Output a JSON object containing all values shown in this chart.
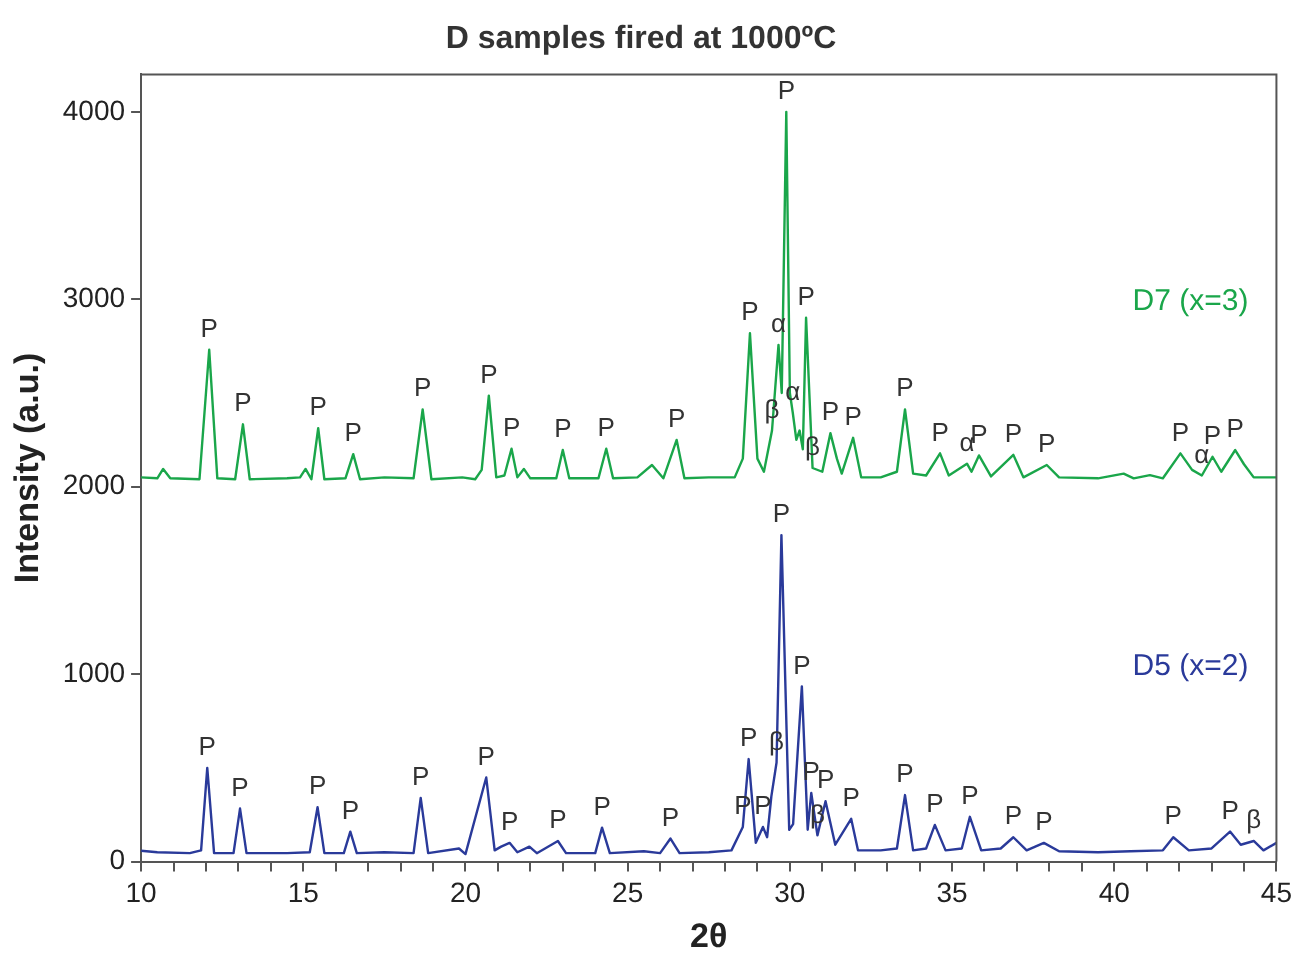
{
  "chart_data": {
    "type": "line",
    "title": "D samples fired at 1000ºC",
    "xlabel": "2θ",
    "ylabel": "Intensity (a.u.)",
    "xlim": [
      10,
      45
    ],
    "ylim": [
      0,
      4200
    ],
    "xticks": [
      10,
      {
        "value": 11,
        "label": null
      },
      {
        "value": 12,
        "label": null
      },
      {
        "value": 13,
        "label": null
      },
      {
        "value": 14,
        "label": null
      },
      15,
      {
        "value": 16,
        "label": null
      },
      {
        "value": 17,
        "label": null
      },
      {
        "value": 18,
        "label": null
      },
      {
        "value": 19,
        "label": null
      },
      20,
      {
        "value": 21,
        "label": null
      },
      {
        "value": 22,
        "label": null
      },
      {
        "value": 23,
        "label": null
      },
      {
        "value": 24,
        "label": null
      },
      25,
      {
        "value": 26,
        "label": null
      },
      {
        "value": 27,
        "label": null
      },
      {
        "value": 28,
        "label": null
      },
      {
        "value": 29,
        "label": null
      },
      30,
      {
        "value": 31,
        "label": null
      },
      {
        "value": 32,
        "label": null
      },
      {
        "value": 33,
        "label": null
      },
      {
        "value": 34,
        "label": null
      },
      35,
      {
        "value": 36,
        "label": null
      },
      {
        "value": 37,
        "label": null
      },
      {
        "value": 38,
        "label": null
      },
      {
        "value": 39,
        "label": null
      },
      40,
      {
        "value": 41,
        "label": null
      },
      {
        "value": 42,
        "label": null
      },
      {
        "value": 43,
        "label": null
      },
      {
        "value": 44,
        "label": null
      },
      45
    ],
    "yticks": [
      0,
      1000,
      2000,
      3000,
      4000
    ],
    "grid": false,
    "legend": false,
    "marker": "none",
    "line_style": "solid",
    "series": [
      {
        "name": "D7 (x=3)",
        "color": "#1aa64a",
        "x": [
          10.0,
          10.5,
          10.68,
          10.9,
          11.8,
          12.1,
          12.35,
          12.9,
          13.14,
          13.35,
          14.5,
          14.9,
          15.07,
          15.25,
          15.46,
          15.65,
          16.3,
          16.54,
          16.75,
          17.5,
          18.4,
          18.68,
          18.95,
          19.9,
          20.3,
          20.5,
          20.72,
          20.95,
          21.2,
          21.42,
          21.6,
          21.8,
          22.0,
          22.8,
          23.0,
          23.2,
          24.1,
          24.34,
          24.55,
          25.3,
          25.75,
          26.1,
          26.51,
          26.75,
          27.5,
          28.3,
          28.55,
          28.77,
          29.0,
          29.2,
          29.45,
          29.65,
          29.75,
          29.89,
          30.0,
          30.09,
          30.2,
          30.3,
          30.4,
          30.5,
          30.7,
          31.0,
          31.25,
          31.45,
          31.6,
          31.95,
          32.2,
          32.8,
          33.3,
          33.55,
          33.8,
          34.2,
          34.63,
          34.9,
          35.46,
          35.6,
          35.83,
          36.2,
          36.89,
          37.2,
          37.92,
          38.3,
          39.5,
          40.29,
          40.6,
          41.1,
          41.5,
          42.04,
          42.4,
          42.7,
          43.03,
          43.3,
          43.73,
          44.0,
          44.3,
          45.0
        ],
        "values": [
          2050,
          2045,
          2095,
          2045,
          2040,
          2731,
          2045,
          2040,
          2333,
          2040,
          2045,
          2050,
          2095,
          2040,
          2312,
          2040,
          2045,
          2174,
          2040,
          2050,
          2045,
          2413,
          2040,
          2050,
          2040,
          2090,
          2486,
          2050,
          2060,
          2203,
          2050,
          2095,
          2045,
          2045,
          2196,
          2045,
          2045,
          2203,
          2045,
          2050,
          2116,
          2045,
          2250,
          2045,
          2050,
          2050,
          2150,
          2819,
          2150,
          2080,
          2300,
          2757,
          2500,
          4000,
          2500,
          2395,
          2250,
          2300,
          2200,
          2902,
          2100,
          2080,
          2286,
          2150,
          2070,
          2261,
          2050,
          2050,
          2080,
          2413,
          2070,
          2060,
          2178,
          2060,
          2123,
          2080,
          2167,
          2055,
          2170,
          2050,
          2116,
          2050,
          2045,
          2070,
          2045,
          2062,
          2045,
          2178,
          2090,
          2060,
          2160,
          2080,
          2196,
          2120,
          2050,
          2050
        ]
      },
      {
        "name": "D5 (x=2)",
        "color": "#2a3a9a",
        "x": [
          10.0,
          10.5,
          11.5,
          11.85,
          12.04,
          12.25,
          12.85,
          13.05,
          13.25,
          14.5,
          15.2,
          15.44,
          15.65,
          16.25,
          16.45,
          16.65,
          17.5,
          18.4,
          18.62,
          18.85,
          19.8,
          20.0,
          20.64,
          20.9,
          21.1,
          21.36,
          21.6,
          21.97,
          22.2,
          22.85,
          23.1,
          24.0,
          24.21,
          24.45,
          25.5,
          26.0,
          26.32,
          26.6,
          27.5,
          28.2,
          28.55,
          28.73,
          28.95,
          29.17,
          29.3,
          29.43,
          29.59,
          29.74,
          29.98,
          30.1,
          30.37,
          30.55,
          30.66,
          30.85,
          31.1,
          31.4,
          31.89,
          32.1,
          32.8,
          33.3,
          33.55,
          33.8,
          34.2,
          34.47,
          34.8,
          35.3,
          35.55,
          35.9,
          36.5,
          36.89,
          37.3,
          37.83,
          38.3,
          39.5,
          40.5,
          41.5,
          41.82,
          42.3,
          43.0,
          43.57,
          43.9,
          44.3,
          44.6,
          45.0
        ],
        "values": [
          58,
          50,
          45,
          60,
          500,
          45,
          45,
          283,
          45,
          45,
          50,
          290,
          45,
          45,
          160,
          45,
          50,
          45,
          340,
          45,
          70,
          40,
          449,
          60,
          80,
          100,
          50,
          80,
          45,
          110,
          45,
          45,
          181,
          45,
          55,
          45,
          123,
          45,
          50,
          60,
          185,
          547,
          100,
          185,
          130,
          348,
          529,
          1742,
          170,
          200,
          935,
          170,
          366,
          140,
          322,
          90,
          228,
          60,
          60,
          70,
          355,
          60,
          70,
          196,
          60,
          70,
          239,
          60,
          70,
          130,
          60,
          100,
          55,
          50,
          55,
          60,
          130,
          60,
          70,
          160,
          90,
          110,
          60,
          100
        ]
      }
    ],
    "annotations": [
      {
        "text": "P",
        "x": 12.1,
        "y": 2731
      },
      {
        "text": "P",
        "x": 13.14,
        "y": 2333
      },
      {
        "text": "P",
        "x": 15.46,
        "y": 2312
      },
      {
        "text": "P",
        "x": 16.54,
        "y": 2174
      },
      {
        "text": "P",
        "x": 18.68,
        "y": 2413
      },
      {
        "text": "P",
        "x": 20.72,
        "y": 2486
      },
      {
        "text": "P",
        "x": 21.42,
        "y": 2203
      },
      {
        "text": "P",
        "x": 23.0,
        "y": 2196
      },
      {
        "text": "P",
        "x": 24.34,
        "y": 2203
      },
      {
        "text": "P",
        "x": 26.51,
        "y": 2250
      },
      {
        "text": "P",
        "x": 28.77,
        "y": 2819
      },
      {
        "text": "α",
        "x": 29.65,
        "y": 2757
      },
      {
        "text": "β",
        "x": 29.45,
        "y": 2300
      },
      {
        "text": "P",
        "x": 29.89,
        "y": 4000
      },
      {
        "text": "α",
        "x": 30.09,
        "y": 2395
      },
      {
        "text": "P",
        "x": 30.5,
        "y": 2902
      },
      {
        "text": "β",
        "x": 30.7,
        "y": 2100
      },
      {
        "text": "P",
        "x": 31.25,
        "y": 2286
      },
      {
        "text": "P",
        "x": 31.95,
        "y": 2261
      },
      {
        "text": "P",
        "x": 33.55,
        "y": 2413
      },
      {
        "text": "P",
        "x": 34.63,
        "y": 2178
      },
      {
        "text": "α",
        "x": 35.46,
        "y": 2123
      },
      {
        "text": "P",
        "x": 35.83,
        "y": 2167
      },
      {
        "text": "P",
        "x": 36.89,
        "y": 2170
      },
      {
        "text": "P",
        "x": 37.92,
        "y": 2116
      },
      {
        "text": "P",
        "x": 42.04,
        "y": 2178
      },
      {
        "text": "α",
        "x": 42.7,
        "y": 2060
      },
      {
        "text": "P",
        "x": 43.03,
        "y": 2160
      },
      {
        "text": "P",
        "x": 43.73,
        "y": 2196
      },
      {
        "text": "P",
        "x": 12.04,
        "y": 500
      },
      {
        "text": "P",
        "x": 13.05,
        "y": 283
      },
      {
        "text": "P",
        "x": 15.44,
        "y": 290
      },
      {
        "text": "P",
        "x": 16.45,
        "y": 160
      },
      {
        "text": "P",
        "x": 18.62,
        "y": 340
      },
      {
        "text": "P",
        "x": 20.64,
        "y": 449
      },
      {
        "text": "P",
        "x": 21.36,
        "y": 100
      },
      {
        "text": "P",
        "x": 22.85,
        "y": 110
      },
      {
        "text": "P",
        "x": 24.21,
        "y": 181
      },
      {
        "text": "P",
        "x": 26.32,
        "y": 123
      },
      {
        "text": "P",
        "x": 28.55,
        "y": 185
      },
      {
        "text": "P",
        "x": 28.73,
        "y": 547
      },
      {
        "text": "β",
        "x": 29.59,
        "y": 529
      },
      {
        "text": "P",
        "x": 29.17,
        "y": 185
      },
      {
        "text": "P",
        "x": 29.74,
        "y": 1742
      },
      {
        "text": "P",
        "x": 30.37,
        "y": 935
      },
      {
        "text": "P",
        "x": 30.66,
        "y": 366
      },
      {
        "text": "β",
        "x": 30.85,
        "y": 140
      },
      {
        "text": "P",
        "x": 31.1,
        "y": 322
      },
      {
        "text": "P",
        "x": 31.89,
        "y": 228
      },
      {
        "text": "P",
        "x": 33.55,
        "y": 355
      },
      {
        "text": "P",
        "x": 34.47,
        "y": 196
      },
      {
        "text": "P",
        "x": 35.55,
        "y": 239
      },
      {
        "text": "P",
        "x": 36.89,
        "y": 130
      },
      {
        "text": "P",
        "x": 37.83,
        "y": 100
      },
      {
        "text": "P",
        "x": 41.82,
        "y": 130
      },
      {
        "text": "P",
        "x": 43.57,
        "y": 160
      },
      {
        "text": "β",
        "x": 44.3,
        "y": 110
      }
    ]
  }
}
